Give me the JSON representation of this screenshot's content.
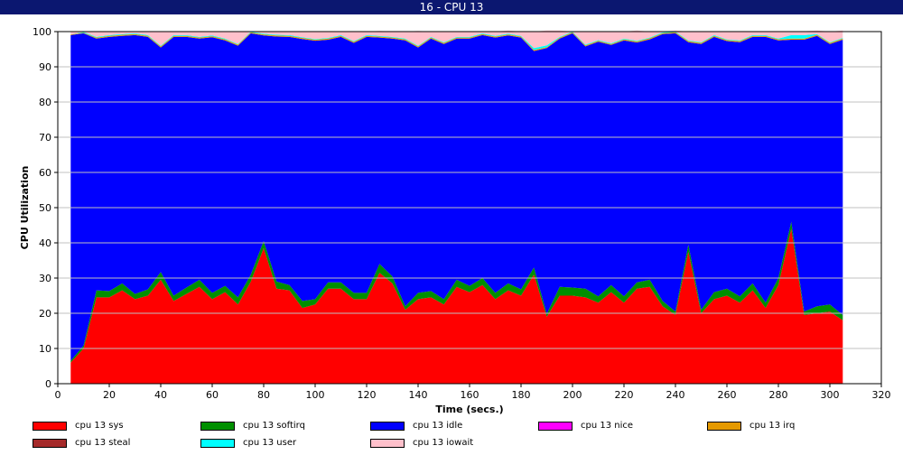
{
  "window": {
    "title": "16 - CPU 13"
  },
  "chart_data": {
    "type": "area",
    "stacked": true,
    "xlabel": "Time (secs.)",
    "ylabel": "CPU Utilization",
    "xlim": [
      0,
      320
    ],
    "ylim": [
      0,
      100
    ],
    "x_ticks": [
      0,
      20,
      40,
      60,
      80,
      100,
      120,
      140,
      160,
      180,
      200,
      220,
      240,
      260,
      280,
      300,
      320
    ],
    "y_ticks": [
      0,
      10,
      20,
      30,
      40,
      50,
      60,
      70,
      80,
      90,
      100
    ],
    "grid": true,
    "legend_position": "bottom",
    "x": [
      5,
      10,
      15,
      20,
      25,
      30,
      35,
      40,
      45,
      50,
      55,
      60,
      65,
      70,
      75,
      80,
      85,
      90,
      95,
      100,
      105,
      110,
      115,
      120,
      125,
      130,
      135,
      140,
      145,
      150,
      155,
      160,
      165,
      170,
      175,
      180,
      185,
      190,
      195,
      200,
      205,
      210,
      215,
      220,
      225,
      230,
      235,
      240,
      245,
      250,
      255,
      260,
      265,
      270,
      275,
      280,
      285,
      290,
      295,
      300,
      305
    ],
    "series": [
      {
        "name": "cpu 13 sys",
        "color": "#ff0000",
        "values": [
          6,
          10,
          24.5,
          24.5,
          26.5,
          24,
          25,
          29.5,
          23.5,
          25.5,
          27.5,
          24,
          26,
          22.5,
          29,
          38.5,
          27,
          26.5,
          21.5,
          22.5,
          27,
          27,
          24,
          24,
          31.5,
          28.5,
          21,
          24,
          24.5,
          22.5,
          27.5,
          26,
          28,
          24,
          26.5,
          25,
          31,
          19,
          25,
          25,
          24.5,
          23,
          26,
          23,
          27,
          27.5,
          22,
          19.5,
          37.5,
          20,
          24,
          25,
          23,
          26.5,
          21.5,
          28,
          44,
          19.5,
          20,
          20.5,
          18
        ]
      },
      {
        "name": "cpu 13 softirq",
        "color": "#008f00",
        "values": [
          0.5,
          0.8,
          2,
          1.8,
          2,
          1.5,
          1.8,
          2.2,
          1.5,
          1.8,
          2,
          1.8,
          1.8,
          2,
          2,
          2,
          2,
          1.5,
          2,
          1.5,
          1.8,
          1.8,
          1.8,
          1.8,
          2.5,
          2,
          1,
          1.8,
          1.8,
          1.5,
          2,
          1.8,
          2,
          1.8,
          2,
          1.8,
          2,
          0.8,
          2.5,
          2.3,
          2.5,
          1.8,
          2,
          1.8,
          1.8,
          2,
          1.5,
          1,
          2,
          1,
          2,
          2,
          1.8,
          2,
          1.5,
          2,
          2,
          1,
          2,
          2,
          1.5
        ]
      },
      {
        "name": "cpu 13 idle",
        "color": "#0000ff",
        "values": [
          92.5,
          88.7,
          71.5,
          72.2,
          70.3,
          73.5,
          71.7,
          63.8,
          73.5,
          71.2,
          68.5,
          72.6,
          69.7,
          71.5,
          68.5,
          58.4,
          69.6,
          70.5,
          74.4,
          73.4,
          68.9,
          69.7,
          71,
          72.7,
          64.3,
          67.5,
          75.5,
          69.7,
          71.7,
          72.5,
          68.5,
          70.2,
          69,
          72.5,
          70.4,
          71.5,
          61.5,
          75.5,
          70.5,
          72.2,
          68.8,
          72.3,
          68.2,
          72.7,
          68.1,
          68.3,
          75.8,
          79,
          57.5,
          75.5,
          72.5,
          70.3,
          72.2,
          70,
          75.5,
          67.5,
          51.7,
          77.2,
          76.8,
          74,
          78.2
        ]
      },
      {
        "name": "cpu 13 nice",
        "color": "#ff00ff",
        "values": [
          0,
          0,
          0,
          0,
          0,
          0,
          0,
          0,
          0,
          0,
          0,
          0,
          0,
          0,
          0,
          0,
          0,
          0,
          0,
          0,
          0,
          0,
          0,
          0,
          0,
          0,
          0,
          0,
          0,
          0,
          0,
          0,
          0,
          0,
          0,
          0,
          0,
          0,
          0,
          0,
          0,
          0,
          0,
          0,
          0,
          0,
          0,
          0,
          0,
          0,
          0,
          0,
          0,
          0,
          0,
          0,
          0,
          0,
          0,
          0,
          0
        ]
      },
      {
        "name": "cpu 13 irq",
        "color": "#e59900",
        "values": [
          0.2,
          0.2,
          0.3,
          0.3,
          0.3,
          0.3,
          0.3,
          0.3,
          0.3,
          0.3,
          0.3,
          0.3,
          0.3,
          0.3,
          0.3,
          0.3,
          0.3,
          0.3,
          0.3,
          0.3,
          0.3,
          0.3,
          0.3,
          0.3,
          0.3,
          0.3,
          0.3,
          0.3,
          0.3,
          0.3,
          0.3,
          0.3,
          0.3,
          0.3,
          0.3,
          0.3,
          0.3,
          0.3,
          0.3,
          0.3,
          0.3,
          0.3,
          0.3,
          0.3,
          0.3,
          0.3,
          0.3,
          0.3,
          0.3,
          0.3,
          0.3,
          0.3,
          0.3,
          0.3,
          0.3,
          0.3,
          0.3,
          0.3,
          0.3,
          0.3,
          0.3
        ]
      },
      {
        "name": "cpu 13 steal",
        "color": "#a52a2a",
        "values": [
          0,
          0,
          0,
          0,
          0,
          0,
          0,
          0,
          0,
          0,
          0,
          0,
          0,
          0,
          0,
          0,
          0,
          0,
          0,
          0,
          0,
          0,
          0,
          0,
          0,
          0,
          0,
          0,
          0,
          0,
          0,
          0,
          0,
          0,
          0,
          0,
          0,
          0,
          0,
          0,
          0,
          0,
          0,
          0,
          0,
          0,
          0,
          0,
          0,
          0,
          0,
          0,
          0,
          0,
          0,
          0,
          0,
          0,
          0,
          0,
          0
        ]
      },
      {
        "name": "cpu 13 user",
        "color": "#00ffff",
        "values": [
          0,
          0.2,
          0.2,
          0.2,
          0.2,
          0.2,
          0.2,
          0.2,
          0.2,
          0.2,
          0.2,
          0.2,
          0.2,
          0.2,
          0.2,
          0.2,
          0.2,
          0.2,
          0.2,
          0.2,
          0.2,
          0.2,
          0.2,
          0.2,
          0.2,
          0.2,
          0.2,
          0.2,
          0.2,
          0.2,
          0.2,
          0.2,
          0.2,
          0.2,
          0.2,
          0.2,
          0.5,
          0.5,
          0.2,
          0.2,
          0.2,
          0.2,
          0.2,
          0.2,
          0.2,
          0.2,
          0.2,
          0.2,
          0.2,
          0.2,
          0.2,
          0.2,
          0.2,
          0.2,
          0.2,
          0.2,
          1,
          1,
          0.2,
          0.2,
          0.2
        ]
      },
      {
        "name": "cpu 13 iowait",
        "color": "#ffc0cb",
        "values": [
          0.8,
          0.1,
          1.5,
          1,
          0.7,
          0.5,
          1,
          4,
          1,
          1,
          1.5,
          1,
          2,
          3.5,
          0,
          0.6,
          0.9,
          1,
          1.6,
          2.1,
          1.8,
          1,
          2.7,
          1,
          1.4,
          1.5,
          2,
          4.2,
          1.5,
          3,
          1.5,
          1.5,
          0.5,
          1.2,
          0.9,
          1.2,
          4.7,
          4.2,
          1.8,
          0,
          3.7,
          2.4,
          3.3,
          2,
          2.9,
          1.7,
          0.2,
          0.3,
          2.5,
          3,
          1,
          2.2,
          2.5,
          1,
          1,
          2,
          1,
          1.1,
          1,
          3,
          2.1
        ]
      }
    ]
  }
}
